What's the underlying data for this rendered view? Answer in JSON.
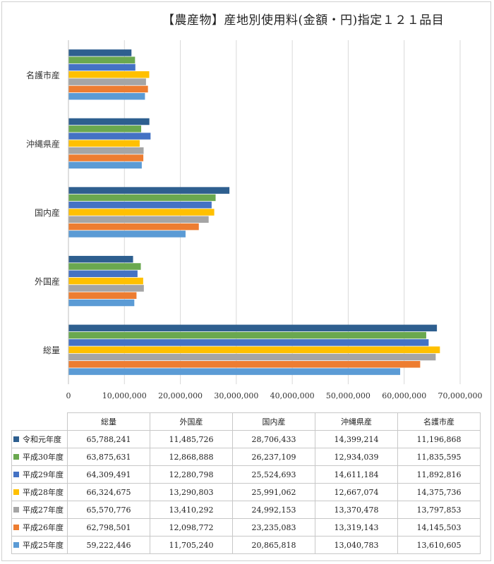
{
  "chart_data": {
    "type": "bar",
    "orientation": "horizontal",
    "title": "【農産物】産地別使用料(金額・円)指定１２１品目",
    "categories": [
      "総量",
      "外国産",
      "国内産",
      "沖縄県産",
      "名護市産"
    ],
    "series": [
      {
        "name": "令和元年度",
        "color": "#2e5f8f",
        "values": [
          65788241,
          11485726,
          28706433,
          14399214,
          11196868
        ]
      },
      {
        "name": "平成30年度",
        "color": "#6aa84f",
        "values": [
          63875631,
          12868888,
          26237109,
          12934039,
          11835595
        ]
      },
      {
        "name": "平成29年度",
        "color": "#4472c4",
        "values": [
          64309491,
          12280798,
          25524693,
          14611184,
          11892816
        ]
      },
      {
        "name": "平成28年度",
        "color": "#ffc000",
        "values": [
          66324675,
          13290803,
          25991062,
          12667074,
          14375736
        ]
      },
      {
        "name": "平成27年度",
        "color": "#a5a5a5",
        "values": [
          65570776,
          13410292,
          24992153,
          13370478,
          13797853
        ]
      },
      {
        "name": "平成26年度",
        "color": "#ed7d31",
        "values": [
          62798501,
          12098772,
          23235083,
          13319143,
          14145503
        ]
      },
      {
        "name": "平成25年度",
        "color": "#5b9bd5",
        "values": [
          59222446,
          11705240,
          20865818,
          13040783,
          13610605
        ]
      }
    ],
    "xlim": [
      0,
      70000000
    ],
    "xticks": [
      "0",
      "10,000,000",
      "20,000,000",
      "30,000,000",
      "40,000,000",
      "50,000,000",
      "60,000,000",
      "70,000,000"
    ],
    "grid": true,
    "legend": "data-table-below"
  },
  "table": {
    "headers": [
      "総量",
      "外国産",
      "国内産",
      "沖縄県産",
      "名護市産"
    ],
    "rows": [
      {
        "label": "令和元年度",
        "cells": [
          "65,788,241",
          "11,485,726",
          "28,706,433",
          "14,399,214",
          "11,196,868"
        ]
      },
      {
        "label": "平成30年度",
        "cells": [
          "63,875,631",
          "12,868,888",
          "26,237,109",
          "12,934,039",
          "11,835,595"
        ]
      },
      {
        "label": "平成29年度",
        "cells": [
          "64,309,491",
          "12,280,798",
          "25,524,693",
          "14,611,184",
          "11,892,816"
        ]
      },
      {
        "label": "平成28年度",
        "cells": [
          "66,324,675",
          "13,290,803",
          "25,991,062",
          "12,667,074",
          "14,375,736"
        ]
      },
      {
        "label": "平成27年度",
        "cells": [
          "65,570,776",
          "13,410,292",
          "24,992,153",
          "13,370,478",
          "13,797,853"
        ]
      },
      {
        "label": "平成26年度",
        "cells": [
          "62,798,501",
          "12,098,772",
          "23,235,083",
          "13,319,143",
          "14,145,503"
        ]
      },
      {
        "label": "平成25年度",
        "cells": [
          "59,222,446",
          "11,705,240",
          "20,865,818",
          "13,040,783",
          "13,610,605"
        ]
      }
    ]
  }
}
